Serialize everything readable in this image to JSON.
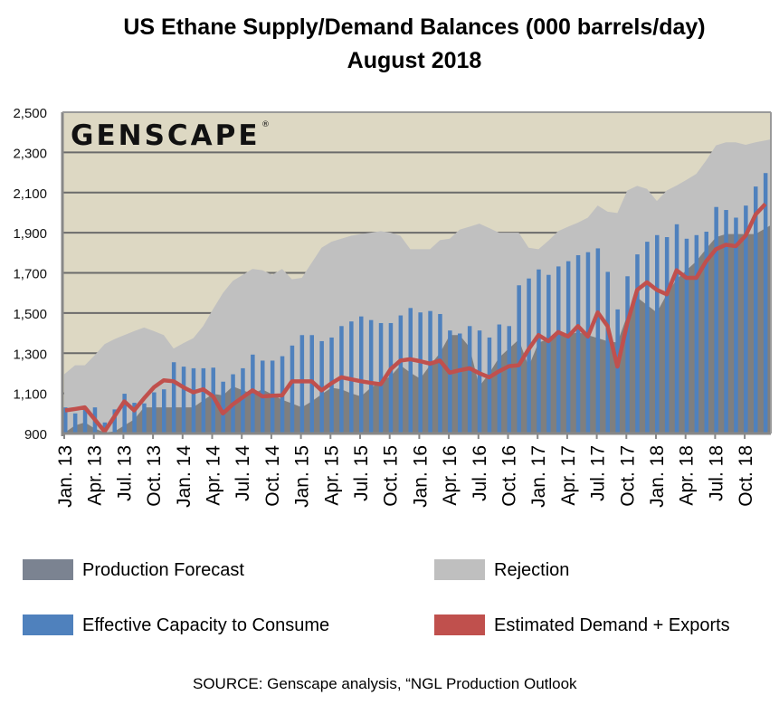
{
  "chart_data": {
    "type": "bar",
    "title": "US Ethane Supply/Demand Balances (000 barrels/day)",
    "subtitle": "August 2018",
    "source": "SOURCE: Genscape analysis, “NGL Production Outlook",
    "logo": "GENSCAPE",
    "ylim": [
      900,
      2500
    ],
    "yticks": [
      "900",
      "1,100",
      "1,300",
      "1,500",
      "1,700",
      "1,900",
      "2,100",
      "2,300",
      "2,500"
    ],
    "ytick_values": [
      900,
      1100,
      1300,
      1500,
      1700,
      1900,
      2100,
      2300,
      2500
    ],
    "grid": true,
    "background": "#ddd8c3",
    "x_start": "Jan. 13",
    "x_tick_labels": [
      "Jan. 13",
      "Apr. 13",
      "Jul. 13",
      "Oct. 13",
      "Jan. 14",
      "Apr. 14",
      "Jul. 14",
      "Oct. 14",
      "Jan. 15",
      "Apr. 15",
      "Jul. 15",
      "Oct. 15",
      "Jan. 16",
      "Apr. 16",
      "Jul. 16",
      "Oct. 16",
      "Jan. 17",
      "Apr. 17",
      "Jul. 17",
      "Oct. 17",
      "Jan. 18",
      "Apr. 18",
      "Jul. 18",
      "Oct. 18"
    ],
    "legend_position": "bottom",
    "series": [
      {
        "name": "Production Forecast",
        "type": "stacked-area",
        "color": "#7f7f7f",
        "legend_color": "#7b8391",
        "values": [
          903,
          940,
          955,
          925,
          905,
          910,
          940,
          970,
          1030,
          1030,
          1030,
          1030,
          1030,
          1030,
          1065,
          1098,
          1090,
          1135,
          1115,
          1098,
          1120,
          1095,
          1068,
          1050,
          1030,
          1060,
          1095,
          1128,
          1120,
          1100,
          1085,
          1128,
          1158,
          1185,
          1240,
          1203,
          1173,
          1240,
          1300,
          1390,
          1390,
          1330,
          1135,
          1200,
          1278,
          1323,
          1368,
          1233,
          1353,
          1370,
          1390,
          1390,
          1405,
          1390,
          1375,
          1360,
          1353,
          1488,
          1578,
          1540,
          1503,
          1593,
          1668,
          1713,
          1758,
          1820,
          1878,
          1893,
          1893,
          1893,
          1893,
          1938
        ]
      },
      {
        "name": "Rejection",
        "type": "stacked-area",
        "color": "#c0c0c0",
        "legend_color": "#bfbfbf",
        "values": [
          292,
          300,
          285,
          365,
          440,
          460,
          450,
          440,
          398,
          380,
          360,
          293,
          320,
          345,
          370,
          422,
          510,
          525,
          575,
          622,
          593,
          595,
          652,
          618,
          645,
          690,
          730,
          727,
          750,
          785,
          808,
          772,
          750,
          715,
          645,
          615,
          645,
          578,
          563,
          480,
          525,
          600,
          810,
          723,
          622,
          577,
          532,
          592,
          465,
          490,
          518,
          540,
          545,
          585,
          660,
          645,
          645,
          622,
          555,
          578,
          555,
          517,
          467,
          450,
          435,
          440,
          457,
          457,
          457,
          445,
          457,
          427
        ]
      },
      {
        "name": "Effective Capacity to Consume",
        "type": "bar",
        "color": "#4f81bd",
        "values": [
          1030,
          1000,
          1030,
          1030,
          955,
          1020,
          1098,
          1053,
          1050,
          1105,
          1120,
          1255,
          1233,
          1225,
          1225,
          1228,
          1158,
          1195,
          1225,
          1293,
          1263,
          1263,
          1285,
          1338,
          1390,
          1390,
          1360,
          1378,
          1435,
          1458,
          1483,
          1465,
          1450,
          1450,
          1488,
          1525,
          1503,
          1510,
          1495,
          1413,
          1398,
          1435,
          1413,
          1378,
          1443,
          1435,
          1638,
          1672,
          1717,
          1690,
          1732,
          1758,
          1788,
          1803,
          1822,
          1705,
          1518,
          1683,
          1792,
          1855,
          1888,
          1878,
          1942,
          1870,
          1888,
          1905,
          2028,
          2013,
          1975,
          2035,
          2130,
          2197
        ]
      },
      {
        "name": "Estimated Demand + Exports",
        "type": "line",
        "color": "#c0504d",
        "values": [
          1015,
          1022,
          1030,
          970,
          910,
          985,
          1060,
          1015,
          1075,
          1130,
          1165,
          1160,
          1130,
          1105,
          1120,
          1085,
          1000,
          1045,
          1080,
          1115,
          1085,
          1088,
          1090,
          1160,
          1160,
          1160,
          1115,
          1150,
          1180,
          1170,
          1160,
          1152,
          1145,
          1220,
          1263,
          1270,
          1260,
          1248,
          1263,
          1203,
          1215,
          1225,
          1200,
          1180,
          1210,
          1235,
          1240,
          1320,
          1390,
          1360,
          1405,
          1383,
          1435,
          1383,
          1503,
          1435,
          1233,
          1450,
          1615,
          1653,
          1615,
          1593,
          1713,
          1675,
          1675,
          1758,
          1818,
          1840,
          1833,
          1885,
          1990,
          2043
        ]
      }
    ]
  }
}
